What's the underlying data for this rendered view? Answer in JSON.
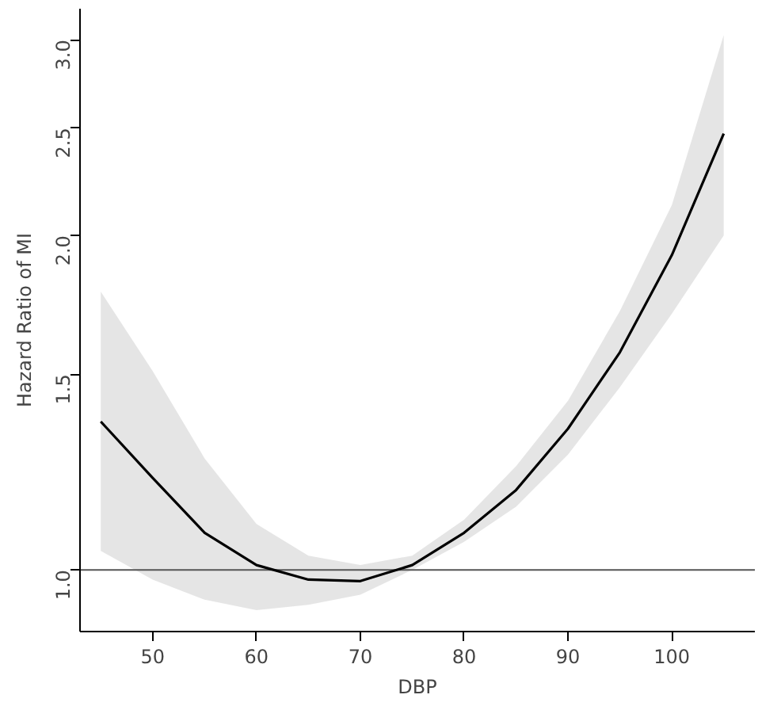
{
  "chart_data": {
    "type": "line",
    "xlabel": "DBP",
    "ylabel": "Hazard Ratio of MI",
    "log": "y",
    "grid": false,
    "marker": "none",
    "line_style": "solid",
    "xlim": [
      43,
      108
    ],
    "xticks": [
      50,
      60,
      70,
      80,
      90,
      100
    ],
    "ylim": [
      0.88,
      3.2
    ],
    "yticks": [
      {
        "value": 1,
        "label": "1.0"
      },
      {
        "value": 1.5,
        "label": "1.5"
      },
      {
        "value": 2,
        "label": "2.0"
      },
      {
        "value": 2.5,
        "label": "2.5"
      },
      {
        "value": 3,
        "label": "3.0"
      }
    ],
    "x": [
      45,
      50,
      55,
      60,
      65,
      70,
      75,
      80,
      85,
      90,
      95,
      100,
      105
    ],
    "series": [
      {
        "color": "#000000",
        "values": [
          1.36,
          1.21,
          1.08,
          1.01,
          0.98,
          0.977,
          1.01,
          1.08,
          1.18,
          1.34,
          1.57,
          1.92,
          2.47
        ],
        "lower": [
          1.04,
          0.98,
          0.94,
          0.92,
          0.93,
          0.95,
          1.0,
          1.06,
          1.14,
          1.27,
          1.46,
          1.7,
          2.0
        ],
        "upper": [
          1.78,
          1.51,
          1.26,
          1.1,
          1.03,
          1.01,
          1.03,
          1.11,
          1.24,
          1.42,
          1.71,
          2.13,
          3.03
        ]
      }
    ],
    "ref_lines": [
      {
        "axis": "y",
        "value": 1,
        "color": "#555555",
        "line_style": "solid"
      }
    ]
  }
}
